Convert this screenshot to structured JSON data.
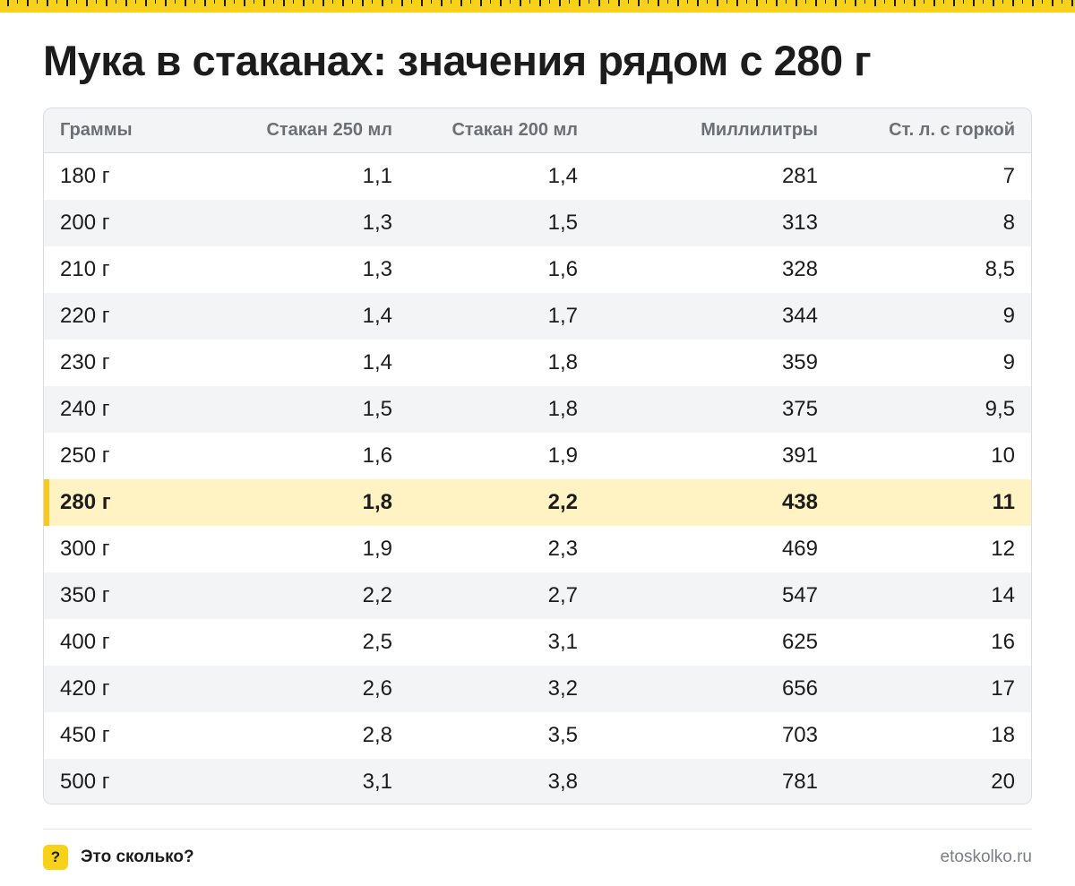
{
  "title": "Мука в стаканах: значения рядом с 280 г",
  "table": {
    "headers": [
      "Граммы",
      "Стакан 250 мл",
      "Стакан 200 мл",
      "Миллилитры",
      "Ст. л. с горкой"
    ],
    "rows": [
      [
        "180 г",
        "1,1",
        "1,4",
        "281",
        "7"
      ],
      [
        "200 г",
        "1,3",
        "1,5",
        "313",
        "8"
      ],
      [
        "210 г",
        "1,3",
        "1,6",
        "328",
        "8,5"
      ],
      [
        "220 г",
        "1,4",
        "1,7",
        "344",
        "9"
      ],
      [
        "230 г",
        "1,4",
        "1,8",
        "359",
        "9"
      ],
      [
        "240 г",
        "1,5",
        "1,8",
        "375",
        "9,5"
      ],
      [
        "250 г",
        "1,6",
        "1,9",
        "391",
        "10"
      ],
      [
        "280 г",
        "1,8",
        "2,2",
        "438",
        "11"
      ],
      [
        "300 г",
        "1,9",
        "2,3",
        "469",
        "12"
      ],
      [
        "350 г",
        "2,2",
        "2,7",
        "547",
        "14"
      ],
      [
        "400 г",
        "2,5",
        "3,1",
        "625",
        "16"
      ],
      [
        "420 г",
        "2,6",
        "3,2",
        "656",
        "17"
      ],
      [
        "450 г",
        "2,8",
        "3,5",
        "703",
        "18"
      ],
      [
        "500 г",
        "3,1",
        "3,8",
        "781",
        "20"
      ]
    ],
    "highlighted_row": 7
  },
  "footer": {
    "icon_glyph": "?",
    "brand": "Это сколько?",
    "site": "etoskolko.ru"
  },
  "colors": {
    "accent_yellow": "#f8d21a",
    "highlight_row": "#fff3c4",
    "zebra": "#f3f4f6",
    "header_text": "#6b6f76"
  }
}
